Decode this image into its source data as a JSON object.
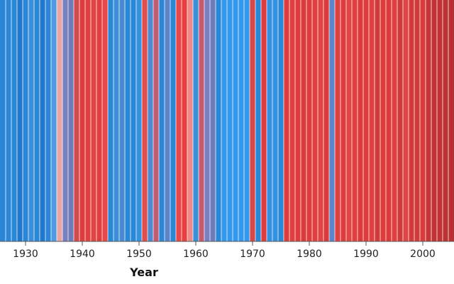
{
  "chart_data": {
    "type": "bar",
    "title": "",
    "xlabel": "Year",
    "ylabel": "",
    "x_range": [
      1926,
      2005
    ],
    "x_ticks": [
      1930,
      1940,
      1950,
      1960,
      1970,
      1980,
      1990,
      2000
    ],
    "x_tick_labels": [
      "1930",
      "1940",
      "1950",
      "1960",
      "1970",
      "1980",
      "1990",
      "2000"
    ],
    "color_scale": {
      "cold": "#2b8de8",
      "neutral": "#f0a0a0",
      "warm": "#e03c3c"
    },
    "series": [
      {
        "name": "stripes",
        "years": [
          1926,
          1927,
          1928,
          1929,
          1930,
          1931,
          1932,
          1933,
          1934,
          1935,
          1936,
          1937,
          1938,
          1939,
          1940,
          1941,
          1942,
          1943,
          1944,
          1945,
          1946,
          1947,
          1948,
          1949,
          1950,
          1951,
          1952,
          1953,
          1954,
          1955,
          1956,
          1957,
          1958,
          1959,
          1960,
          1961,
          1962,
          1963,
          1964,
          1965,
          1966,
          1967,
          1968,
          1969,
          1970,
          1971,
          1972,
          1973,
          1974,
          1975,
          1976,
          1977,
          1978,
          1979,
          1980,
          1981,
          1982,
          1983,
          1984,
          1985,
          1986,
          1987,
          1988,
          1989,
          1990,
          1991,
          1992,
          1993,
          1994,
          1995,
          1996,
          1997,
          1998,
          1999,
          2000,
          2001,
          2002,
          2003,
          2004,
          2005
        ],
        "colors": [
          "#2a87d6",
          "#2a87d6",
          "#2a87d6",
          "#1f78cc",
          "#2a87d6",
          "#3a8fd8",
          "#2a87d6",
          "#1f78cc",
          "#2a87d6",
          "#4f9ae0",
          "#e9a6a6",
          "#7a7fc0",
          "#6d7dbc",
          "#d44a4a",
          "#e03c3c",
          "#e24040",
          "#e04545",
          "#e23e3e",
          "#e84848",
          "#2a87d6",
          "#3a8fd8",
          "#4a8ad0",
          "#2a87d6",
          "#2a87d6",
          "#3391e0",
          "#e34c4c",
          "#4f89d2",
          "#c35a70",
          "#2a87d6",
          "#5b85c8",
          "#2a87d6",
          "#e84747",
          "#e93f3f",
          "#ee8a8a",
          "#3a8fd8",
          "#c35a70",
          "#7a7fc0",
          "#6d7dbc",
          "#2a87d6",
          "#3399ee",
          "#3399ee",
          "#3399ee",
          "#3399ee",
          "#3399ee",
          "#d84848",
          "#2a87d6",
          "#e03c3c",
          "#3391e0",
          "#3391e0",
          "#2a87d6",
          "#e03c3c",
          "#e24040",
          "#e03c3c",
          "#d93a3a",
          "#e03c3c",
          "#e24040",
          "#e04545",
          "#d93a3a",
          "#5b85c8",
          "#e24040",
          "#e03c3c",
          "#e04545",
          "#e24040",
          "#d93a3a",
          "#e03c3c",
          "#e24040",
          "#cf3c3c",
          "#e03c3c",
          "#d93a3a",
          "#e24040",
          "#cf3c3c",
          "#e04545",
          "#d43a3a",
          "#cf3c3c",
          "#d93a3a",
          "#c63535",
          "#c33333",
          "#c03434",
          "#bb3232",
          "#b83030"
        ]
      }
    ]
  }
}
